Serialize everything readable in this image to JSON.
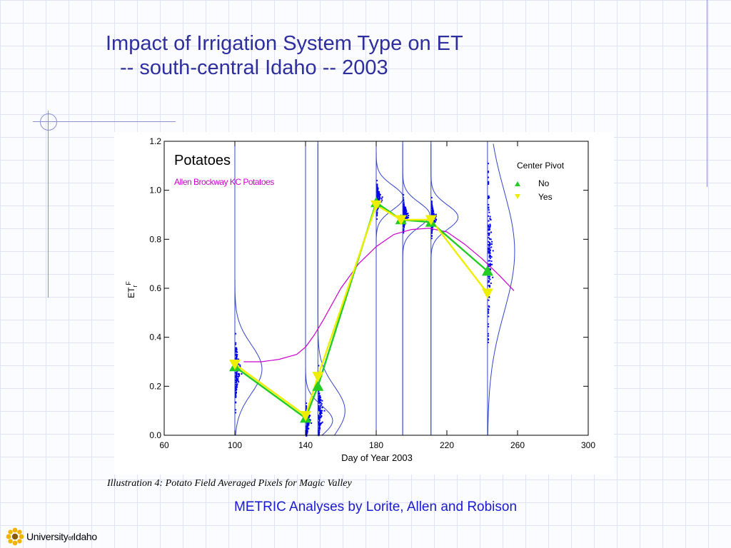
{
  "slide": {
    "title_line1": "Impact of Irrigation System Type on ET",
    "title_line2": "-- south-central Idaho -- 2003",
    "caption": "Illustration 4: Potato Field Averaged Pixels for Magic Valley",
    "credit": "METRIC Analyses by Lorite, Allen and Robison",
    "logo": {
      "part1": "University",
      "part2": "of",
      "part3": "Idaho",
      "icon": "sun-flower-icon"
    }
  },
  "chart_data": {
    "type": "line",
    "title": "Potatoes",
    "subtitle": "Allen Brockway KC Potatoes",
    "xlabel": "Day of Year 2003",
    "ylabel": "ET",
    "ylabel_sub": "r",
    "ylabel_sup": "F",
    "xlim": [
      60,
      300
    ],
    "ylim": [
      0,
      1.2
    ],
    "xticks": [
      60,
      100,
      140,
      180,
      220,
      260,
      300
    ],
    "yticks": [
      0.0,
      0.2,
      0.4,
      0.6,
      0.8,
      1.0,
      1.2
    ],
    "ytick_labels": [
      "0.0",
      "0.2",
      "0.4",
      "0.6",
      "0.8",
      "1.0",
      "1.2"
    ],
    "legend": {
      "title": "Center Pivot",
      "position": "top-right",
      "entries": [
        {
          "label": "No",
          "marker": "triangle-up",
          "color": "#22cc22"
        },
        {
          "label": "Yes",
          "marker": "triangle-down",
          "color": "#eeee00"
        }
      ]
    },
    "series": [
      {
        "name": "No",
        "color": "#22cc22",
        "marker": "triangle-up",
        "x": [
          100,
          140,
          147,
          180,
          194,
          211,
          243
        ],
        "y": [
          0.28,
          0.07,
          0.2,
          0.95,
          0.88,
          0.87,
          0.67
        ]
      },
      {
        "name": "Yes",
        "color": "#eeee00",
        "marker": "triangle-down",
        "x": [
          100,
          140,
          147,
          180,
          194,
          211,
          243
        ],
        "y": [
          0.29,
          0.08,
          0.24,
          0.94,
          0.88,
          0.88,
          0.58
        ]
      }
    ],
    "kc_curve": {
      "name": "Allen Brockway KC Potatoes",
      "color": "#cc00cc",
      "x": [
        105,
        115,
        125,
        135,
        140,
        145,
        150,
        160,
        170,
        180,
        190,
        200,
        210,
        220,
        230,
        240,
        250,
        258
      ],
      "y": [
        0.3,
        0.3,
        0.31,
        0.33,
        0.36,
        0.41,
        0.47,
        0.6,
        0.7,
        0.77,
        0.82,
        0.84,
        0.845,
        0.83,
        0.78,
        0.72,
        0.65,
        0.59
      ]
    },
    "distributions": [
      {
        "x": 100,
        "center": 0.27,
        "spread": 0.1
      },
      {
        "x": 140,
        "center": 0.06,
        "spread": 0.06
      },
      {
        "x": 147,
        "center": 0.1,
        "spread": 0.1
      },
      {
        "x": 180,
        "center": 0.97,
        "spread": 0.05
      },
      {
        "x": 195,
        "center": 0.9,
        "spread": 0.05
      },
      {
        "x": 211,
        "center": 0.89,
        "spread": 0.05
      },
      {
        "x": 243,
        "center": 0.75,
        "spread": 0.25
      }
    ],
    "colors": {
      "pixels": "#0000ee",
      "envelope": "#3344cc",
      "kc": "#cc00cc",
      "no": "#22cc22",
      "yes": "#eeee00"
    }
  }
}
